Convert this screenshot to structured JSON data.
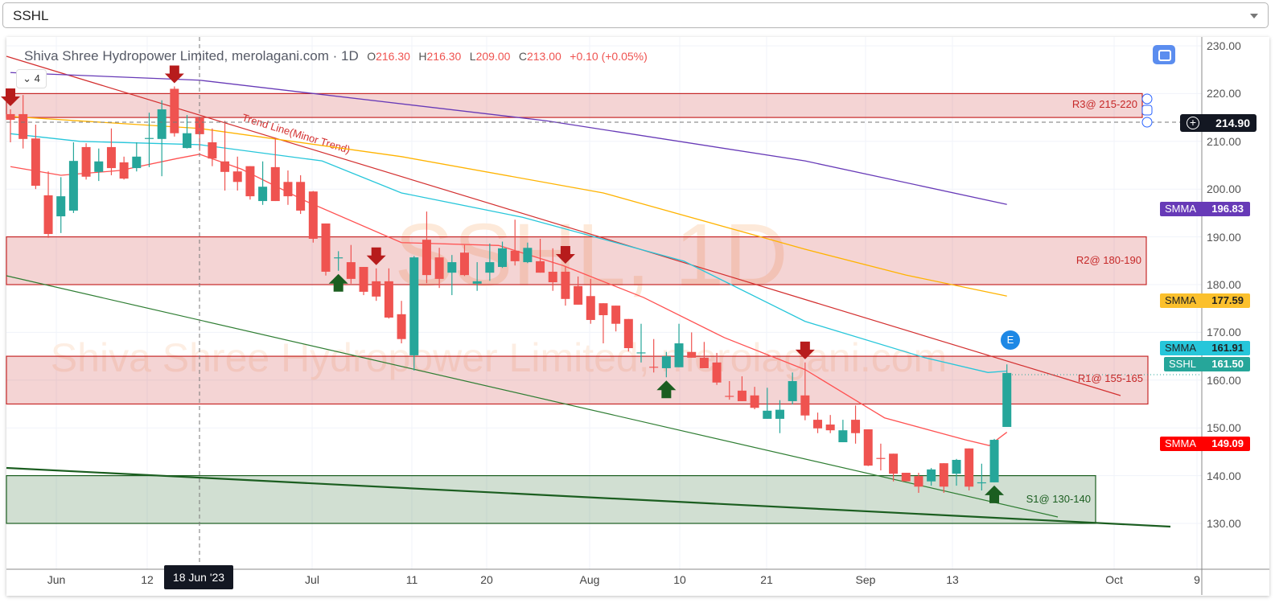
{
  "select": {
    "value": "SSHL"
  },
  "legend": {
    "title": "Shiva Shree Hydropower Limited, merolagani.com · 1D",
    "open_label": "O",
    "open": "216.30",
    "high_label": "H",
    "high": "216.30",
    "low_label": "L",
    "low": "209.00",
    "close_label": "C",
    "close": "213.00",
    "change": "+0.10 (+0.05%)",
    "collapse_count": "4"
  },
  "watermark": {
    "symbol": "SSHL, 1D",
    "name": "Shiva Shree Hydropower Limited, merolagani.com"
  },
  "drawings": {
    "trend_label": "Trend Line(Minor Trend)",
    "zones": [
      {
        "label": "R3@ 215-220",
        "low": 215,
        "high": 220,
        "color": "#c62828"
      },
      {
        "label": "R2@ 180-190",
        "low": 180,
        "high": 190,
        "color": "#c62828"
      },
      {
        "label": "R1@ 155-165",
        "low": 155,
        "high": 165,
        "color": "#c62828"
      },
      {
        "label": "S1@ 130-140",
        "low": 130,
        "high": 140,
        "color": "#1b5e20"
      }
    ],
    "event_marker": "E"
  },
  "crosshair": {
    "date": "18 Jun '23",
    "price": "214.90"
  },
  "badges": [
    {
      "name": "SMMA",
      "value": "196.83",
      "color": "#673ab7",
      "text": "#fff"
    },
    {
      "name": "SMMA",
      "value": "177.59",
      "color": "#fbc02d",
      "text": "#222"
    },
    {
      "name": "SMMA",
      "value": "161.91",
      "color": "#26c6da",
      "text": "#222"
    },
    {
      "name": "SSHL",
      "value": "161.50",
      "color": "#26a69a",
      "text": "#fff"
    },
    {
      "name": "SMMA",
      "value": "149.09",
      "color": "#ff0000",
      "text": "#fff"
    }
  ],
  "chart_data": {
    "type": "candlestick",
    "title": "Shiva Shree Hydropower Limited, merolagani.com · 1D",
    "ylim": [
      120,
      232
    ],
    "y_ticks": [
      "230.00",
      "220.00",
      "210.00",
      "200.00",
      "190.00",
      "180.00",
      "170.00",
      "160.00",
      "150.00",
      "140.00",
      "130.00"
    ],
    "x_ticks": [
      "Jun",
      "12",
      "Jul",
      "11",
      "20",
      "Aug",
      "10",
      "21",
      "Sep",
      "13",
      "Oct",
      "9"
    ],
    "up_color": "#26a69a",
    "down_color": "#ef5350",
    "ohlc": [
      [
        215.7,
        216.7,
        209.8,
        214.5
      ],
      [
        215.7,
        219.7,
        208.5,
        210.5
      ],
      [
        210.6,
        213.5,
        200,
        200.7
      ],
      [
        198.7,
        203.7,
        189.8,
        190.6
      ],
      [
        194.3,
        202.5,
        190.8,
        198.5
      ],
      [
        195.5,
        209.8,
        195,
        205.9
      ],
      [
        208.8,
        209.6,
        202,
        202.6
      ],
      [
        203.6,
        208.5,
        201.7,
        205.8
      ],
      [
        208.8,
        212.7,
        202.9,
        204.4
      ],
      [
        205.6,
        206.8,
        202,
        202.2
      ],
      [
        204.4,
        209.8,
        203.7,
        206.8
      ],
      [
        210.5,
        216,
        204.6,
        210.7
      ],
      [
        210.5,
        218.6,
        202.7,
        216.7
      ],
      [
        221,
        221.5,
        211,
        211.7
      ],
      [
        208.6,
        215.5,
        208.5,
        211.7
      ],
      [
        215,
        215,
        208,
        211.5
      ],
      [
        209.8,
        212.7,
        204.8,
        206.4
      ],
      [
        205.8,
        214.3,
        199.7,
        203.6
      ],
      [
        203.7,
        206.8,
        199.7,
        201.5
      ],
      [
        204.8,
        204.8,
        197.8,
        198.5
      ],
      [
        197.5,
        205.8,
        196.7,
        200.5
      ],
      [
        204.6,
        210.6,
        197.5,
        197.5
      ],
      [
        201.5,
        203.9,
        196.7,
        198.5
      ],
      [
        201.5,
        202.9,
        194.8,
        195.5
      ],
      [
        199.5,
        199.6,
        188.8,
        189.6
      ],
      [
        192.8,
        192.8,
        181.9,
        182.7
      ],
      [
        185.5,
        187,
        182.9,
        185.7
      ],
      [
        184.7,
        188.3,
        180.2,
        181.2
      ],
      [
        183.7,
        183.7,
        177.8,
        178.5
      ],
      [
        180.7,
        183.4,
        176.6,
        177.5
      ],
      [
        180.7,
        183.4,
        172.9,
        173.1
      ],
      [
        173.8,
        176.6,
        167.7,
        168.6
      ],
      [
        165.2,
        186,
        162,
        185.7
      ],
      [
        189.4,
        195.3,
        180.3,
        182
      ],
      [
        185.7,
        187.7,
        179.3,
        181.2
      ],
      [
        182.5,
        186.2,
        177.8,
        184.7
      ],
      [
        186.7,
        188.3,
        181.8,
        182
      ],
      [
        180.2,
        184.7,
        178.7,
        180.7
      ],
      [
        182.5,
        188.6,
        180.8,
        184.7
      ],
      [
        183.7,
        189,
        183.5,
        187.6
      ],
      [
        187.1,
        193.6,
        184,
        184.9
      ],
      [
        184.7,
        188.8,
        184.5,
        187.7
      ],
      [
        184.9,
        189.6,
        182.5,
        182.5
      ],
      [
        182.7,
        187.6,
        178.7,
        180.5
      ],
      [
        182.7,
        183.7,
        175.6,
        177
      ],
      [
        179.7,
        181.7,
        175.8,
        175.8
      ],
      [
        177.6,
        181.2,
        171.8,
        172.6
      ],
      [
        176.1,
        176.1,
        167.7,
        173.6
      ],
      [
        175.6,
        175.6,
        170.2,
        171.8
      ],
      [
        172.8,
        172.8,
        166,
        166.7
      ],
      [
        165.6,
        171.8,
        163.7,
        165.8
      ],
      [
        162.8,
        168.6,
        161.6,
        162.6
      ],
      [
        162.5,
        165.9,
        160.6,
        165
      ],
      [
        162.7,
        171.8,
        162.7,
        167.7
      ],
      [
        165.9,
        170,
        164.7,
        164.7
      ],
      [
        164.7,
        168,
        162.5,
        162.5
      ],
      [
        163.7,
        165.7,
        159,
        159.5
      ],
      [
        156.7,
        159.8,
        155.9,
        156.5
      ],
      [
        157.8,
        160.8,
        155.6,
        155.6
      ],
      [
        156.8,
        158.6,
        153.9,
        154.2
      ],
      [
        151.9,
        158.4,
        151.9,
        153.6
      ],
      [
        151.9,
        155.8,
        148.9,
        153.8
      ],
      [
        155.6,
        161.6,
        154.9,
        159.8
      ],
      [
        156.8,
        163.7,
        151.6,
        152.6
      ],
      [
        151.7,
        153.2,
        148.9,
        149.9
      ],
      [
        150.7,
        152.7,
        148.9,
        149.5
      ],
      [
        147,
        151.7,
        147,
        149.5
      ],
      [
        151.7,
        154.7,
        146.7,
        148.9
      ],
      [
        149.7,
        149.7,
        142,
        142.1
      ],
      [
        143.7,
        146.7,
        141.1,
        143.5
      ],
      [
        144.6,
        144.6,
        138.8,
        140.4
      ],
      [
        140.6,
        140.6,
        138.8,
        138.8
      ],
      [
        139.9,
        140.6,
        136.4,
        137.7
      ],
      [
        138.8,
        141.6,
        137.9,
        141.3
      ],
      [
        142.6,
        142.6,
        136.4,
        137.7
      ],
      [
        140.4,
        143.5,
        137.9,
        143.3
      ],
      [
        145.7,
        145.7,
        136.9,
        137.7
      ],
      [
        138.4,
        142.5,
        136.9,
        138.6
      ],
      [
        138.6,
        147.7,
        138.6,
        147.5
      ],
      [
        150.2,
        163.3,
        150.2,
        161.5
      ]
    ],
    "series": [
      {
        "name": "SMMA",
        "color": "#673ab7",
        "points": [
          [
            0,
            224.4
          ],
          [
            15,
            222.8
          ],
          [
            42.5,
            214.3
          ],
          [
            63,
            205.9
          ],
          [
            79,
            196.8
          ]
        ]
      },
      {
        "name": "SMMA",
        "color": "#ffb300",
        "points": [
          [
            0,
            215.2
          ],
          [
            15,
            212.7
          ],
          [
            31,
            206.8
          ],
          [
            47,
            199.2
          ],
          [
            63,
            187.4
          ],
          [
            71,
            182
          ],
          [
            79,
            177.6
          ]
        ]
      },
      {
        "name": "SMMA",
        "color": "#26c6da",
        "points": [
          [
            0,
            211.6
          ],
          [
            5.5,
            210
          ],
          [
            15,
            209.3
          ],
          [
            24.7,
            205.9
          ],
          [
            31,
            199.2
          ],
          [
            40.6,
            194.1
          ],
          [
            53.4,
            184.9
          ],
          [
            63,
            172.3
          ],
          [
            72.5,
            164.7
          ],
          [
            77.5,
            161.6
          ],
          [
            79,
            161.9
          ]
        ]
      },
      {
        "name": "SMMA",
        "color": "#ff5252",
        "points": [
          [
            0,
            204.7
          ],
          [
            4,
            202.9
          ],
          [
            8.7,
            203.9
          ],
          [
            13.2,
            206.4
          ],
          [
            15,
            207.3
          ],
          [
            18.3,
            204.2
          ],
          [
            23.4,
            197.5
          ],
          [
            31,
            188.8
          ],
          [
            38.7,
            188.2
          ],
          [
            43.8,
            184
          ],
          [
            50.2,
            177.3
          ],
          [
            56.6,
            168.9
          ],
          [
            63,
            162.2
          ],
          [
            69.3,
            152.1
          ],
          [
            75.7,
            147.5
          ],
          [
            77.6,
            146.3
          ],
          [
            79,
            149.1
          ]
        ]
      }
    ],
    "signals": [
      {
        "type": "sell",
        "index": 0
      },
      {
        "type": "sell",
        "index": 13
      },
      {
        "type": "sell",
        "index": 29
      },
      {
        "type": "sell",
        "index": 44
      },
      {
        "type": "sell",
        "index": 63
      },
      {
        "type": "buy",
        "index": 26
      },
      {
        "type": "buy",
        "index": 52
      },
      {
        "type": "buy",
        "index": 78
      }
    ],
    "legend": "top-left"
  }
}
